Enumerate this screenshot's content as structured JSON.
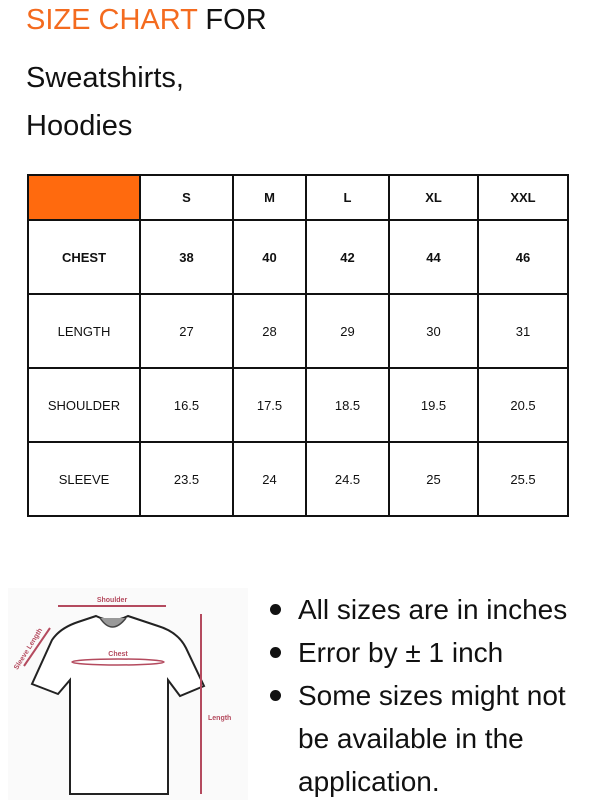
{
  "header": {
    "title_accent": "SIZE CHART",
    "title_rest": " FOR",
    "subtitle_line1": "Sweatshirts,",
    "subtitle_line2": "Hoodies",
    "accent_color": "#f46b1f"
  },
  "table": {
    "columns": [
      "S",
      "M",
      "L",
      "XL",
      "XXL"
    ],
    "rows": [
      {
        "label": "CHEST",
        "values": [
          "38",
          "40",
          "42",
          "44",
          "46"
        ]
      },
      {
        "label": "LENGTH",
        "values": [
          "27",
          "28",
          "29",
          "30",
          "31"
        ]
      },
      {
        "label": "SHOULDER",
        "values": [
          "16.5",
          "17.5",
          "18.5",
          "19.5",
          "20.5"
        ]
      },
      {
        "label": "SLEEVE",
        "values": [
          "23.5",
          "24",
          "24.5",
          "25",
          "25.5"
        ]
      }
    ]
  },
  "diagram": {
    "shoulder": "Shoulder",
    "sleeve": "Sleeve Length",
    "chest": "Chest",
    "length": "Length"
  },
  "notes": [
    "All sizes are in inches",
    "Error by ± 1 inch",
    "Some sizes might not be available in the application."
  ]
}
